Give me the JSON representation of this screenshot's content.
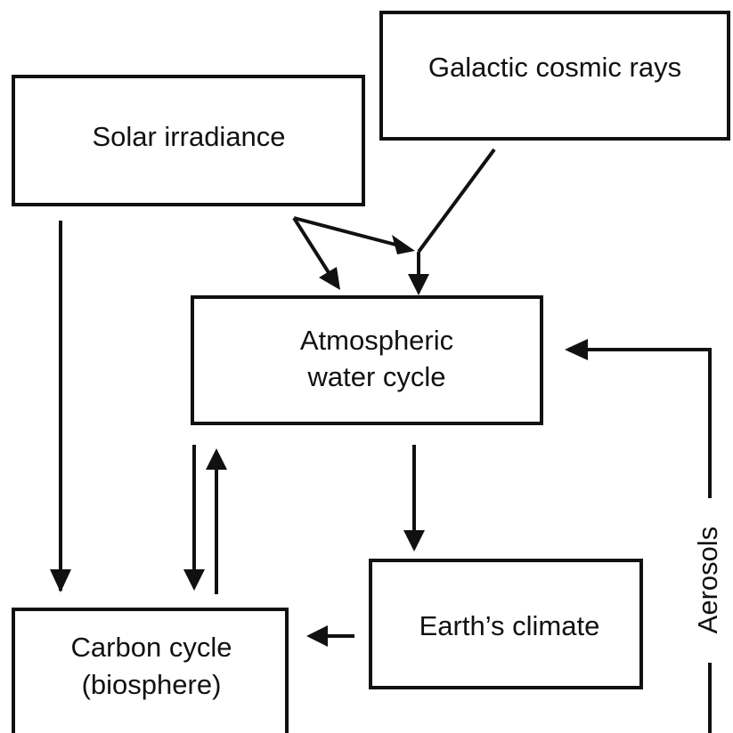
{
  "nodes": [
    {
      "lines": [
        "Galactic cosmic rays"
      ]
    },
    {
      "lines": [
        "Solar irradiance"
      ]
    },
    {
      "lines": [
        "Atmospheric",
        "water cycle"
      ]
    },
    {
      "lines": [
        "Earth’s climate"
      ]
    },
    {
      "lines": [
        "Carbon cycle",
        "(biosphere)"
      ]
    }
  ],
  "edges": [
    {
      "label": "Aerosols"
    }
  ]
}
